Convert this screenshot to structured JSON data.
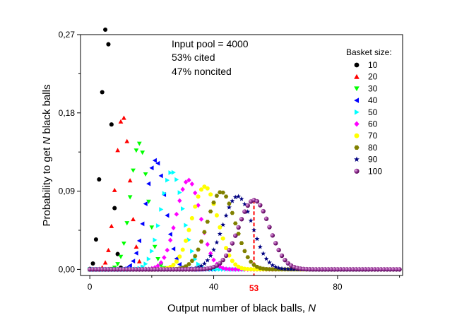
{
  "chart_data": {
    "type": "scatter",
    "title": "",
    "xlabel": "Output number of black balls, ",
    "xlabel_var": "N",
    "ylabel_pre": "Probability to get ",
    "ylabel_var": "N",
    "ylabel_post": " black balls",
    "xlim": [
      -3,
      101
    ],
    "ylim": [
      -0.007,
      0.27
    ],
    "xticks": [
      {
        "value": 0,
        "label": "0"
      },
      {
        "value": 40,
        "label": "40"
      },
      {
        "value": 80,
        "label": "80"
      }
    ],
    "yticks": [
      {
        "value": 0,
        "label": "0,00"
      },
      {
        "value": 0.09,
        "label": "0,09"
      },
      {
        "value": 0.18,
        "label": "0,18"
      },
      {
        "value": 0.27,
        "label": "0,27"
      }
    ],
    "annotations": [
      "Input pool = 4000",
      "53% cited",
      "47% noncited"
    ],
    "legend_title": "Basket size:",
    "legend_position": "top-right",
    "pool_fraction": 0.53,
    "marker": {
      "x": 53,
      "label": "53",
      "color": "#ff0000"
    },
    "x_step": 1,
    "series": [
      {
        "name": "10",
        "n": 10,
        "color": "#000000",
        "shape": "circle",
        "x_max": 10,
        "y": [
          0.0006,
          0.0068,
          0.0344,
          0.1035,
          0.2038,
          0.2757,
          0.2589,
          0.1667,
          0.0705,
          0.0177,
          0.002
        ]
      },
      {
        "name": "20",
        "n": 20,
        "color": "#ff0000",
        "shape": "triangle-up",
        "x_max": 20
      },
      {
        "name": "30",
        "n": 30,
        "color": "#00ff00",
        "shape": "triangle-down",
        "x_max": 30
      },
      {
        "name": "40",
        "n": 40,
        "color": "#0000ff",
        "shape": "triangle-left",
        "x_max": 40
      },
      {
        "name": "50",
        "n": 50,
        "color": "#00ffff",
        "shape": "triangle-right",
        "x_max": 50
      },
      {
        "name": "60",
        "n": 60,
        "color": "#ff00ff",
        "shape": "diamond",
        "x_max": 60
      },
      {
        "name": "70",
        "n": 70,
        "color": "#ffff00",
        "shape": "circle",
        "x_max": 70
      },
      {
        "name": "80",
        "n": 80,
        "color": "#808000",
        "shape": "hexagon",
        "x_max": 80
      },
      {
        "name": "90",
        "n": 90,
        "color": "#000080",
        "shape": "star",
        "x_max": 90
      },
      {
        "name": "100",
        "n": 100,
        "color": "#800080",
        "shape": "sphere",
        "x_max": 100
      }
    ]
  }
}
